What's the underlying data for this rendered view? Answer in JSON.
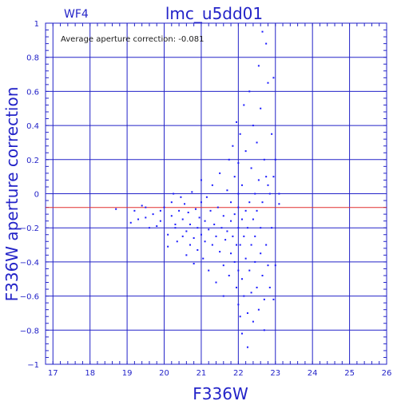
{
  "chart_data": {
    "type": "scatter",
    "title": "lmc_u5dd01",
    "chip": "WF4",
    "annotation": "Average aperture correction: -0.081",
    "xlabel": "F336W",
    "ylabel": "F336W aperture correction",
    "xlim": [
      16.8,
      26
    ],
    "ylim": [
      -1,
      1
    ],
    "xticks": [
      17,
      18,
      19,
      20,
      21,
      22,
      23,
      24,
      25,
      26
    ],
    "yticks": [
      -1,
      -0.8,
      -0.6,
      -0.4,
      -0.2,
      0,
      0.2,
      0.4,
      0.6,
      0.8,
      1
    ],
    "yticklabels": [
      "−1",
      "−0.8",
      "−0.6",
      "−0.4",
      "−0.2",
      "0",
      "0.2",
      "0.4",
      "0.6",
      "0.8",
      "1"
    ],
    "grid": true,
    "reference_line": {
      "y": -0.081,
      "color": "#e03030"
    },
    "colors": {
      "axes": "#2323c8",
      "points": "#1a1aff",
      "reference": "#e03030"
    },
    "series": [
      {
        "points": [
          [
            18.7,
            -0.09
          ],
          [
            19.1,
            -0.17
          ],
          [
            19.2,
            -0.1
          ],
          [
            19.3,
            -0.15
          ],
          [
            19.4,
            -0.07
          ],
          [
            19.5,
            -0.08
          ],
          [
            19.5,
            -0.14
          ],
          [
            19.6,
            -0.2
          ],
          [
            19.7,
            -0.12
          ],
          [
            19.8,
            -0.19
          ],
          [
            19.9,
            -0.1
          ],
          [
            19.9,
            -0.16
          ],
          [
            20.0,
            -0.08
          ],
          [
            20.1,
            -0.24
          ],
          [
            20.1,
            -0.31
          ],
          [
            20.2,
            -0.13
          ],
          [
            20.2,
            -0.05
          ],
          [
            20.25,
            0.0
          ],
          [
            20.3,
            -0.2
          ],
          [
            20.3,
            -0.18
          ],
          [
            20.35,
            -0.28
          ],
          [
            20.4,
            -0.1
          ],
          [
            20.45,
            -0.02
          ],
          [
            20.5,
            -0.15
          ],
          [
            20.5,
            -0.25
          ],
          [
            20.55,
            -0.06
          ],
          [
            20.6,
            -0.22
          ],
          [
            20.6,
            -0.36
          ],
          [
            20.65,
            -0.11
          ],
          [
            20.7,
            -0.3
          ],
          [
            20.7,
            -0.18
          ],
          [
            20.75,
            0.01
          ],
          [
            20.8,
            -0.26
          ],
          [
            20.8,
            -0.41
          ],
          [
            20.85,
            -0.09
          ],
          [
            20.9,
            -0.2
          ],
          [
            20.9,
            -0.33
          ],
          [
            20.95,
            -0.14
          ],
          [
            21.0,
            -0.24
          ],
          [
            21.0,
            -0.05
          ],
          [
            21.0,
            0.08
          ],
          [
            21.05,
            -0.38
          ],
          [
            21.1,
            -0.16
          ],
          [
            21.1,
            -0.28
          ],
          [
            21.15,
            -0.02
          ],
          [
            21.2,
            -0.21
          ],
          [
            21.2,
            -0.45
          ],
          [
            21.25,
            -0.1
          ],
          [
            21.3,
            -0.3
          ],
          [
            21.3,
            0.05
          ],
          [
            21.35,
            -0.18
          ],
          [
            21.4,
            -0.52
          ],
          [
            21.4,
            -0.25
          ],
          [
            21.45,
            -0.08
          ],
          [
            21.5,
            -0.34
          ],
          [
            21.5,
            0.12
          ],
          [
            21.55,
            -0.2
          ],
          [
            21.6,
            -0.6
          ],
          [
            21.6,
            -0.13
          ],
          [
            21.6,
            -0.42
          ],
          [
            21.65,
            -0.27
          ],
          [
            21.7,
            0.02
          ],
          [
            21.7,
            -0.22
          ],
          [
            21.75,
            -0.48
          ],
          [
            21.75,
            0.2
          ],
          [
            21.8,
            -0.16
          ],
          [
            21.8,
            -0.35
          ],
          [
            21.8,
            -0.05
          ],
          [
            21.85,
            -0.25
          ],
          [
            21.85,
            0.28
          ],
          [
            21.9,
            -0.4
          ],
          [
            21.9,
            -0.12
          ],
          [
            21.9,
            0.1
          ],
          [
            21.95,
            -0.3
          ],
          [
            21.95,
            -0.55
          ],
          [
            21.95,
            0.42
          ],
          [
            22.0,
            -0.2
          ],
          [
            22.0,
            -0.65
          ],
          [
            22.0,
            -0.08
          ],
          [
            22.0,
            0.0
          ],
          [
            22.0,
            -0.45
          ],
          [
            22.0,
            0.18
          ],
          [
            22.05,
            -0.72
          ],
          [
            22.05,
            -0.3
          ],
          [
            22.05,
            0.35
          ],
          [
            22.1,
            -0.15
          ],
          [
            22.1,
            -0.82
          ],
          [
            22.1,
            -0.5
          ],
          [
            22.1,
            0.05
          ],
          [
            22.15,
            -0.25
          ],
          [
            22.15,
            -0.6
          ],
          [
            22.15,
            0.52
          ],
          [
            22.2,
            -0.38
          ],
          [
            22.2,
            -0.1
          ],
          [
            22.2,
            0.25
          ],
          [
            22.25,
            -0.7
          ],
          [
            22.25,
            -0.2
          ],
          [
            22.25,
            -0.9
          ],
          [
            22.3,
            -0.45
          ],
          [
            22.3,
            -0.05
          ],
          [
            22.3,
            0.6
          ],
          [
            22.35,
            -0.3
          ],
          [
            22.35,
            0.15
          ],
          [
            22.35,
            -0.58
          ],
          [
            22.4,
            -0.15
          ],
          [
            22.4,
            -0.75
          ],
          [
            22.4,
            0.4
          ],
          [
            22.45,
            -0.4
          ],
          [
            22.45,
            0.0
          ],
          [
            22.45,
            -0.25
          ],
          [
            22.5,
            -0.55
          ],
          [
            22.5,
            0.3
          ],
          [
            22.5,
            -0.1
          ],
          [
            22.55,
            -0.68
          ],
          [
            22.55,
            0.08
          ],
          [
            22.55,
            0.75
          ],
          [
            22.6,
            -0.35
          ],
          [
            22.6,
            -0.2
          ],
          [
            22.6,
            0.5
          ],
          [
            22.65,
            -0.48
          ],
          [
            22.65,
            -0.05
          ],
          [
            22.65,
            0.95
          ],
          [
            22.7,
            -0.62
          ],
          [
            22.7,
            0.2
          ],
          [
            22.7,
            -0.8
          ],
          [
            22.75,
            -0.3
          ],
          [
            22.75,
            0.1
          ],
          [
            22.75,
            0.88
          ],
          [
            22.8,
            -0.42
          ],
          [
            22.8,
            0.05
          ],
          [
            22.8,
            0.65
          ],
          [
            22.85,
            -0.55
          ],
          [
            22.85,
            0.0
          ],
          [
            22.9,
            -0.2
          ],
          [
            22.9,
            0.35
          ],
          [
            22.95,
            -0.62
          ],
          [
            22.95,
            0.1
          ],
          [
            22.95,
            0.68
          ],
          [
            23.0,
            -0.42
          ],
          [
            23.0,
            0.2
          ],
          [
            23.1,
            -0.06
          ],
          [
            23.1,
            0.0
          ]
        ]
      }
    ]
  }
}
